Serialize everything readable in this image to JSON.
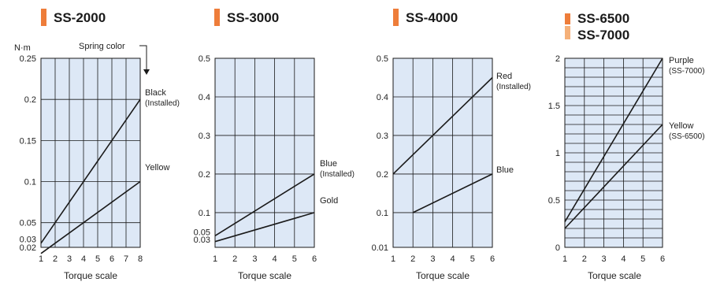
{
  "colors": {
    "title_bar": "#ee7d3a",
    "title_bar_light": "#f5b079",
    "plot_bg": "#dde8f6",
    "grid": "#1a1a1a",
    "line": "#1a1a1a"
  },
  "unit_label": "N·m",
  "spring_color_note": "Spring color",
  "xlabel": "Torque scale",
  "chart_data": [
    {
      "type": "line",
      "title": "SS-2000",
      "xlabel": "Torque scale",
      "ylabel": "N·m",
      "xlim": [
        1,
        8
      ],
      "ylim": [
        0.02,
        0.25
      ],
      "x_ticks": [
        "1",
        "2",
        "3",
        "4",
        "5",
        "6",
        "7",
        "8"
      ],
      "y_ticks": [
        {
          "v": 0.02,
          "label": "0.02"
        },
        {
          "v": 0.03,
          "label": "0.03"
        },
        {
          "v": 0.05,
          "label": "0.05"
        },
        {
          "v": 0.1,
          "label": "0.1"
        },
        {
          "v": 0.15,
          "label": "0.15"
        },
        {
          "v": 0.2,
          "label": "0.2"
        },
        {
          "v": 0.25,
          "label": "0.25"
        }
      ],
      "h_grid": [
        0.05,
        0.1,
        0.15,
        0.2
      ],
      "v_grid_step": 1,
      "series": [
        {
          "name": "Black",
          "note": "(Installed)",
          "x": [
            1,
            8
          ],
          "y": [
            0.025,
            0.2
          ]
        },
        {
          "name": "Yellow",
          "note": "",
          "x": [
            1,
            8
          ],
          "y": [
            0.0125,
            0.1
          ]
        }
      ]
    },
    {
      "type": "line",
      "title": "SS-3000",
      "xlabel": "Torque scale",
      "xlim": [
        1,
        6
      ],
      "ylim": [
        0.01,
        0.5
      ],
      "x_ticks": [
        "1",
        "2",
        "3",
        "4",
        "5",
        "6"
      ],
      "y_ticks": [
        {
          "v": 0.03,
          "label": "0.03"
        },
        {
          "v": 0.05,
          "label": "0.05"
        },
        {
          "v": 0.1,
          "label": "0.1"
        },
        {
          "v": 0.2,
          "label": "0.2"
        },
        {
          "v": 0.3,
          "label": "0.3"
        },
        {
          "v": 0.4,
          "label": "0.4"
        },
        {
          "v": 0.5,
          "label": "0.5"
        }
      ],
      "h_grid": [
        0.1,
        0.2,
        0.3,
        0.4
      ],
      "v_grid_step": 1,
      "series": [
        {
          "name": "Blue",
          "note": "(Installed)",
          "x": [
            1,
            6
          ],
          "y": [
            0.04,
            0.2
          ]
        },
        {
          "name": "Gold",
          "note": "",
          "x": [
            1,
            6
          ],
          "y": [
            0.025,
            0.1
          ]
        }
      ]
    },
    {
      "type": "line",
      "title": "SS-4000",
      "xlabel": "Torque scale",
      "xlim": [
        1,
        6
      ],
      "ylim": [
        0.01,
        0.5
      ],
      "x_ticks": [
        "1",
        "2",
        "3",
        "4",
        "5",
        "6"
      ],
      "y_ticks": [
        {
          "v": 0.01,
          "label": "0.01"
        },
        {
          "v": 0.1,
          "label": "0.1"
        },
        {
          "v": 0.2,
          "label": "0.2"
        },
        {
          "v": 0.3,
          "label": "0.3"
        },
        {
          "v": 0.4,
          "label": "0.4"
        },
        {
          "v": 0.5,
          "label": "0.5"
        }
      ],
      "h_grid": [
        0.1,
        0.2,
        0.3,
        0.4
      ],
      "v_grid_step": 1,
      "series": [
        {
          "name": "Red",
          "note": "(Installed)",
          "x": [
            1,
            6
          ],
          "y": [
            0.2,
            0.45
          ]
        },
        {
          "name": "Blue",
          "note": "",
          "x": [
            2,
            6
          ],
          "y": [
            0.1,
            0.2
          ]
        }
      ]
    },
    {
      "type": "line",
      "title": "SS-6500",
      "title2": "SS-7000",
      "xlabel": "Torque scale",
      "xlim": [
        1,
        6
      ],
      "ylim": [
        0,
        2
      ],
      "x_ticks": [
        "1",
        "2",
        "3",
        "4",
        "5",
        "6"
      ],
      "y_ticks": [
        {
          "v": 0,
          "label": "0"
        },
        {
          "v": 0.5,
          "label": "0.5"
        },
        {
          "v": 1,
          "label": "1"
        },
        {
          "v": 1.5,
          "label": "1.5"
        },
        {
          "v": 2,
          "label": "2"
        }
      ],
      "h_grid_step": 0.1,
      "v_grid_step": 1,
      "series": [
        {
          "name": "Purple",
          "note": "(SS-7000)",
          "x": [
            1,
            6
          ],
          "y": [
            0.27,
            2.0
          ]
        },
        {
          "name": "Yellow",
          "note": "(SS-6500)",
          "x": [
            1,
            6
          ],
          "y": [
            0.2,
            1.3
          ]
        }
      ]
    }
  ]
}
